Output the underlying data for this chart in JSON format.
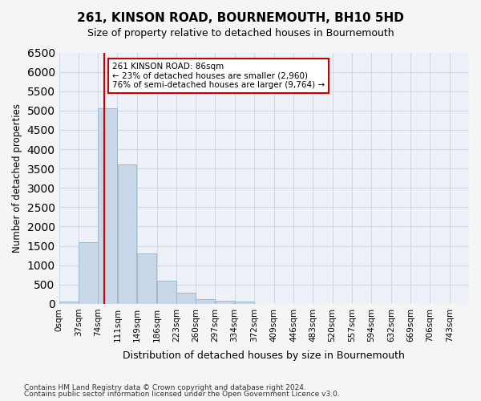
{
  "title": "261, KINSON ROAD, BOURNEMOUTH, BH10 5HD",
  "subtitle": "Size of property relative to detached houses in Bournemouth",
  "xlabel": "Distribution of detached houses by size in Bournemouth",
  "ylabel": "Number of detached properties",
  "bar_color": "#c8d8e8",
  "bar_edgecolor": "#a0b8cc",
  "grid_color": "#d0d8e8",
  "background_color": "#eef2f8",
  "annotation_box_color": "#ffffff",
  "annotation_border_color": "#cc0000",
  "vline_color": "#cc0000",
  "footer_line1": "Contains HM Land Registry data © Crown copyright and database right 2024.",
  "footer_line2": "Contains public sector information licensed under the Open Government Licence v3.0.",
  "annotation_line1": "261 KINSON ROAD: 86sqm",
  "annotation_line2": "← 23% of detached houses are smaller (2,960)",
  "annotation_line3": "76% of semi-detached houses are larger (9,764) →",
  "property_size": 86,
  "categories": [
    "0sqm",
    "37sqm",
    "74sqm",
    "111sqm",
    "149sqm",
    "186sqm",
    "223sqm",
    "260sqm",
    "297sqm",
    "334sqm",
    "372sqm",
    "409sqm",
    "446sqm",
    "483sqm",
    "520sqm",
    "557sqm",
    "594sqm",
    "632sqm",
    "669sqm",
    "706sqm",
    "743sqm"
  ],
  "bar_edges": [
    0,
    37,
    74,
    111,
    149,
    186,
    223,
    260,
    297,
    334,
    372,
    409,
    446,
    483,
    520,
    557,
    594,
    632,
    669,
    706,
    743
  ],
  "values": [
    50,
    1600,
    5050,
    3600,
    1300,
    600,
    280,
    130,
    90,
    60,
    0,
    0,
    0,
    0,
    0,
    0,
    0,
    0,
    0,
    0
  ],
  "ylim": [
    0,
    6500
  ],
  "yticks": [
    0,
    500,
    1000,
    1500,
    2000,
    2500,
    3000,
    3500,
    4000,
    4500,
    5000,
    5500,
    6000,
    6500
  ]
}
